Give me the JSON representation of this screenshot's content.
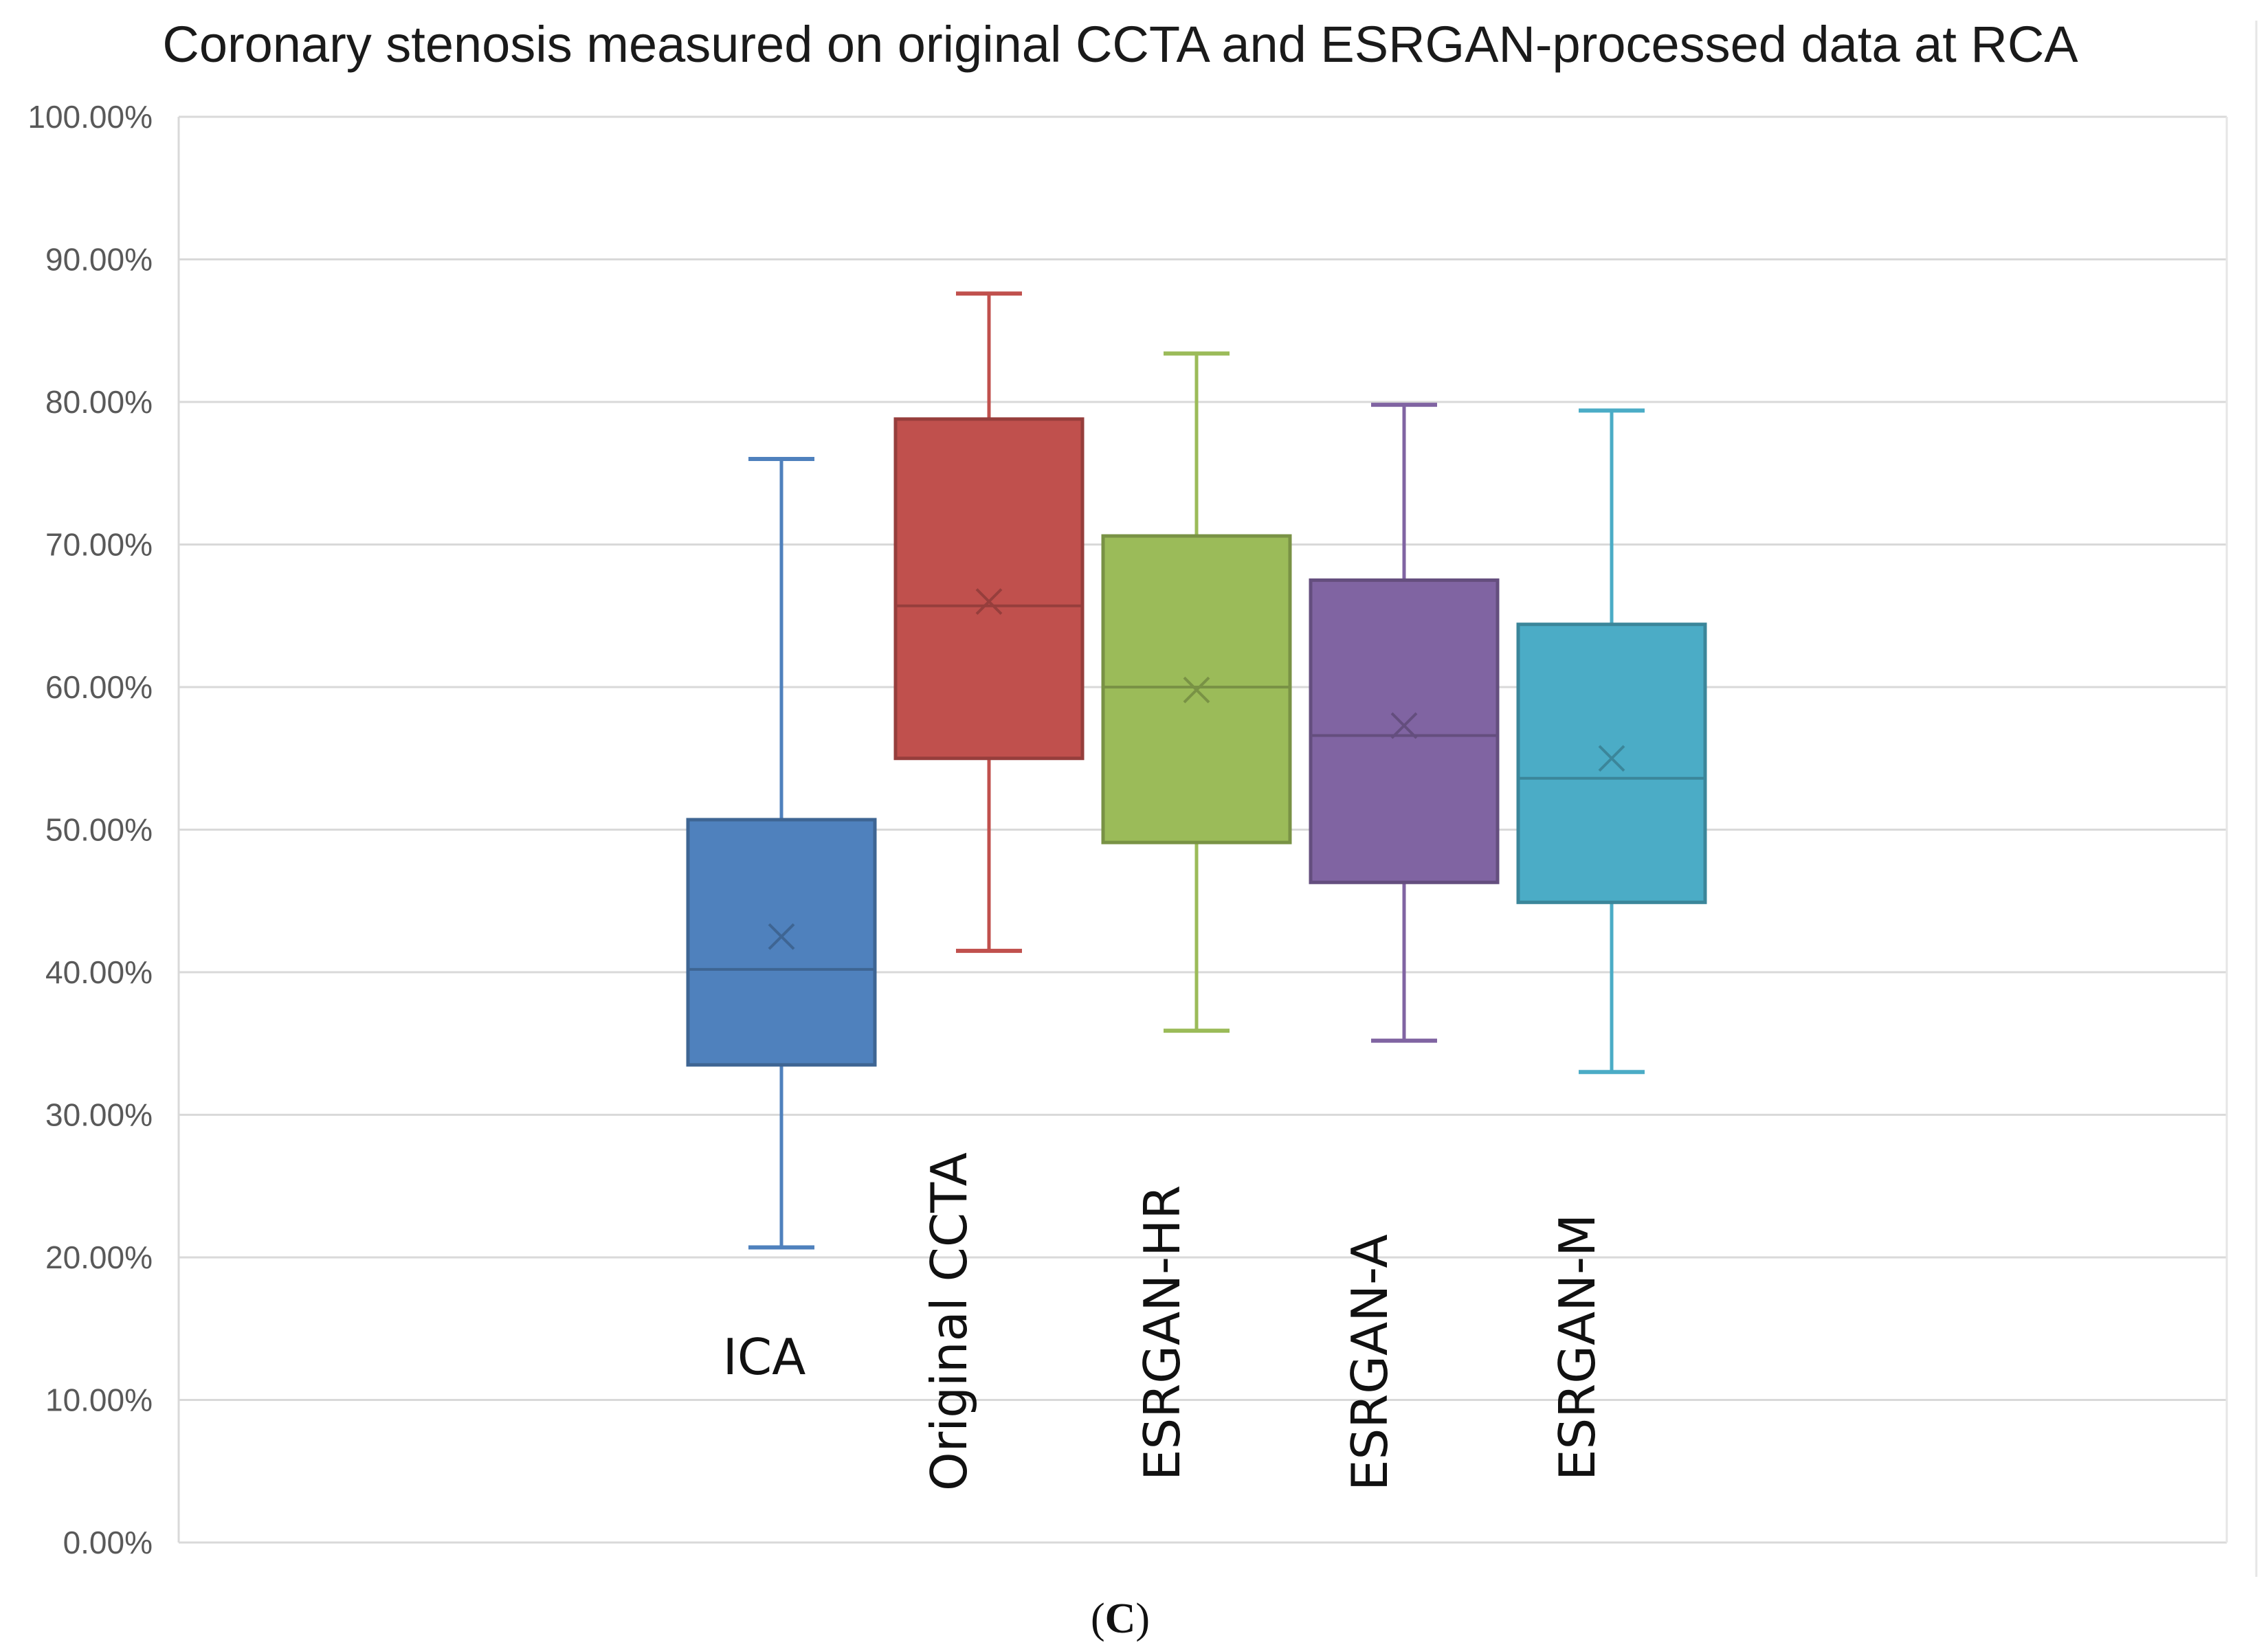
{
  "chart_data": {
    "type": "box",
    "title": "Coronary stenosis measured on original CCTA and ESRGAN-processed data at RCA",
    "caption_open": "(",
    "caption_letter": "C",
    "caption_close": ")",
    "ylim": [
      0,
      100
    ],
    "yticks": [
      "0.00%",
      "10.00%",
      "20.00%",
      "30.00%",
      "40.00%",
      "50.00%",
      "60.00%",
      "70.00%",
      "80.00%",
      "90.00%",
      "100.00%"
    ],
    "grid": true,
    "series": [
      {
        "category": "ICA",
        "color": "#4F81BD",
        "min": 20.7,
        "q1": 33.5,
        "median": 40.2,
        "mean": 42.5,
        "q3": 50.7,
        "max": 76.0
      },
      {
        "category": "Original CCTA",
        "color": "#C0504D",
        "min": 41.5,
        "q1": 55.0,
        "median": 65.7,
        "mean": 66.0,
        "q3": 78.8,
        "max": 87.6
      },
      {
        "category": "ESRGAN-HR",
        "color": "#9BBB59",
        "min": 35.9,
        "q1": 49.1,
        "median": 60.0,
        "mean": 59.8,
        "q3": 70.6,
        "max": 83.4
      },
      {
        "category": "ESRGAN-A",
        "color": "#8064A2",
        "min": 35.2,
        "q1": 46.3,
        "median": 56.6,
        "mean": 57.3,
        "q3": 67.5,
        "max": 79.8
      },
      {
        "category": "ESRGAN-M",
        "color": "#4BACC6",
        "min": 33.0,
        "q1": 44.9,
        "median": 53.6,
        "mean": 55.0,
        "q3": 64.4,
        "max": 79.4
      }
    ]
  }
}
